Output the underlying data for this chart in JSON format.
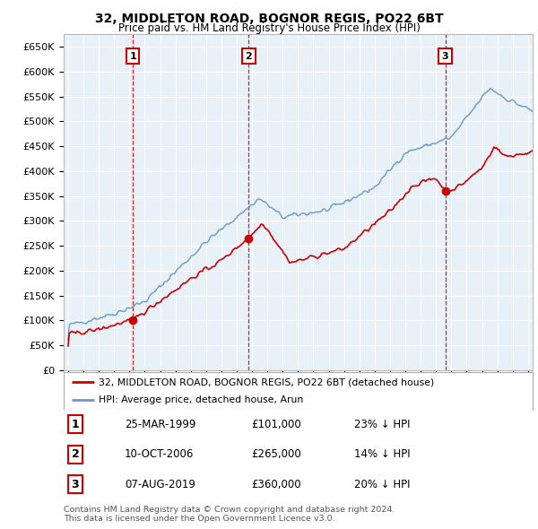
{
  "title": "32, MIDDLETON ROAD, BOGNOR REGIS, PO22 6BT",
  "subtitle": "Price paid vs. HM Land Registry's House Price Index (HPI)",
  "ylabel_ticks": [
    "£0",
    "£50K",
    "£100K",
    "£150K",
    "£200K",
    "£250K",
    "£300K",
    "£350K",
    "£400K",
    "£450K",
    "£500K",
    "£550K",
    "£600K",
    "£650K"
  ],
  "ytick_values": [
    0,
    50000,
    100000,
    150000,
    200000,
    250000,
    300000,
    350000,
    400000,
    450000,
    500000,
    550000,
    600000,
    650000
  ],
  "xmin": 1994.7,
  "xmax": 2025.3,
  "ymin": 0,
  "ymax": 675000,
  "sale_dates": [
    1999.23,
    2006.78,
    2019.6
  ],
  "sale_prices": [
    101000,
    265000,
    360000
  ],
  "sale_labels": [
    "1",
    "2",
    "3"
  ],
  "legend_line1": "32, MIDDLETON ROAD, BOGNOR REGIS, PO22 6BT (detached house)",
  "legend_line2": "HPI: Average price, detached house, Arun",
  "table_data": [
    [
      "1",
      "25-MAR-1999",
      "£101,000",
      "23% ↓ HPI"
    ],
    [
      "2",
      "10-OCT-2006",
      "£265,000",
      "14% ↓ HPI"
    ],
    [
      "3",
      "07-AUG-2019",
      "£360,000",
      "20% ↓ HPI"
    ]
  ],
  "footnote": "Contains HM Land Registry data © Crown copyright and database right 2024.\nThis data is licensed under the Open Government Licence v3.0.",
  "line_color_red": "#cc0000",
  "line_color_blue": "#6699cc",
  "bg_plot": "#e8f0f8",
  "bg_color": "#ffffff",
  "grid_color": "#ffffff",
  "sale_marker_color": "#cc0000"
}
